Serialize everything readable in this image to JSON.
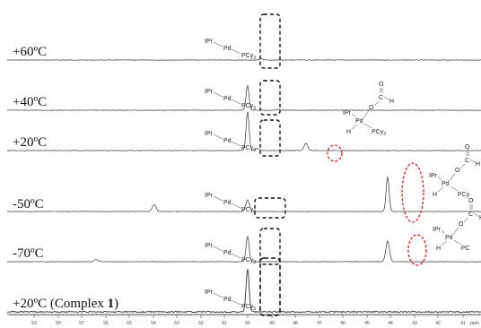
{
  "chart_data": {
    "type": "line",
    "x_ticks": [
      "53",
      "50",
      "57",
      "56",
      "55",
      "54",
      "53",
      "52",
      "51",
      "50",
      "49",
      "48",
      "47",
      "46",
      "45",
      "44",
      "43",
      "42",
      "41",
      "ppm"
    ],
    "grid": false,
    "series": [
      {
        "label": "+60ºC",
        "peaks": [
          {
            "at": 49.0,
            "height": 0.0
          },
          {
            "at": 48.4,
            "height": 0.03
          }
        ],
        "annotation": {
          "ipr": "IPr",
          "pd": "Pd",
          "pcy": "PCy",
          "sub": "3"
        }
      },
      {
        "label": "+40ºC",
        "peaks": [
          {
            "at": 49.0,
            "height": 0.6
          },
          {
            "at": 47.7,
            "height": 0.02
          }
        ],
        "annotation": {
          "ipr": "IPr",
          "pd": "Pd",
          "pcy": "PCy",
          "sub": "3"
        }
      },
      {
        "label": "+20ºC",
        "peaks": [
          {
            "at": 49.0,
            "height": 0.95
          },
          {
            "at": 48.6,
            "height": 0.05
          },
          {
            "at": 46.5,
            "height": 0.18
          }
        ],
        "annotation": {
          "ipr": "IPr",
          "pd": "Pd",
          "pcy": "PCy",
          "sub": "3"
        },
        "formate": {
          "ipr": "IPr",
          "pd": "Pd",
          "h": "H",
          "o1": "O",
          "c": "C",
          "o2": "O",
          "h2": "H",
          "pcy": "PCy",
          "sub": "3"
        }
      },
      {
        "label": "-50ºC",
        "peaks": [
          {
            "at": 53.0,
            "height": 0.17
          },
          {
            "at": 49.0,
            "height": 0.28
          },
          {
            "at": 43.0,
            "height": 0.85
          }
        ],
        "annotation": {
          "ipr": "IPr",
          "pd": "Pd",
          "pcy": "PCy",
          "sub": "3"
        },
        "formate": {
          "ipr": "IPr",
          "pd": "Pd",
          "h": "H",
          "o1": "O",
          "c": "C",
          "o2": "O",
          "h2": "H",
          "pcy": "PCy",
          "sub": ""
        }
      },
      {
        "label": "-70ºC",
        "peaks": [
          {
            "at": 55.5,
            "height": 0.05
          },
          {
            "at": 49.0,
            "height": 0.62
          },
          {
            "at": 43.0,
            "height": 0.5
          }
        ],
        "annotation": {
          "ipr": "IPr",
          "pd": "Pd",
          "pcy": "PCy",
          "sub": "3"
        },
        "formate": {
          "ipr": "IPr",
          "pd": "Pd",
          "h": "H",
          "o1": "O",
          "c": "C",
          "o2": "O",
          "h2": "H",
          "pcy": "PC",
          "sub": ""
        }
      },
      {
        "label_prefix": "+20ºC (Complex ",
        "label_bold": "1",
        "label_suffix": ")",
        "peaks": [
          {
            "at": 49.0,
            "height": 1.05
          }
        ],
        "annotation": {
          "ipr": "IPr",
          "pd": "Pd",
          "pcy": "PCy",
          "sub": "3"
        }
      }
    ],
    "highlight_colors": {
      "main_peak_box": "#111111",
      "formate_peak_ellipse": "#e0201c"
    }
  }
}
